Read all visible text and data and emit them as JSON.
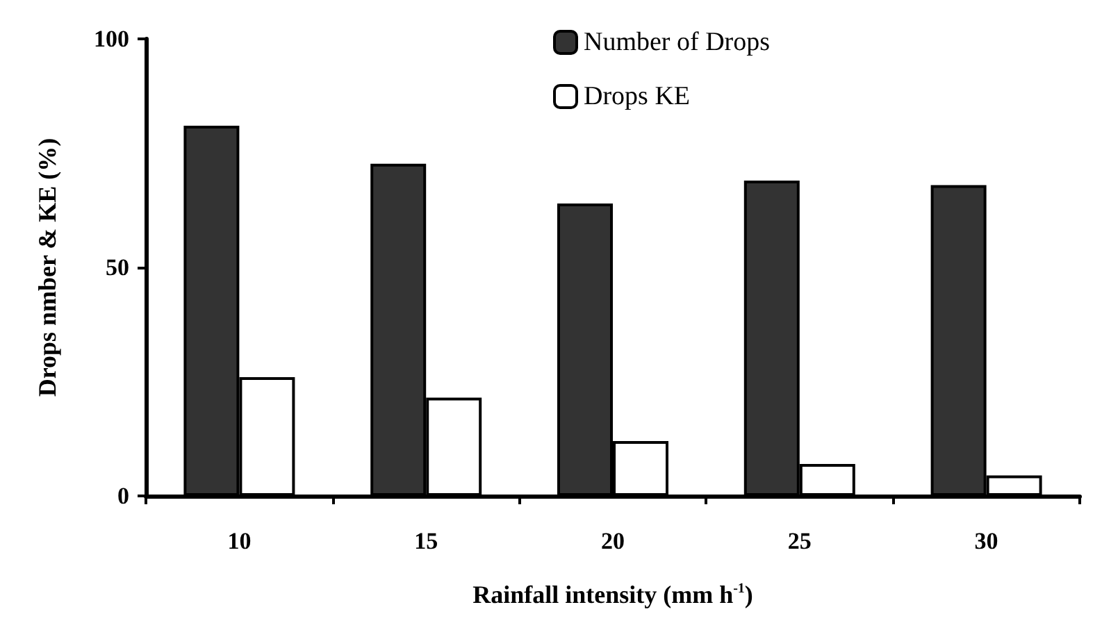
{
  "chart_data": {
    "type": "bar",
    "xlabel": "Rainfall intensity (mm h$^{-1}$)",
    "ylabel": "Drops nmber & KE (%)",
    "categories": [
      "10",
      "15",
      "20",
      "25",
      "30"
    ],
    "series": [
      {
        "name": "Number of Drops",
        "color": "#333333",
        "values": [
          81,
          72.7,
          64,
          69,
          68
        ]
      },
      {
        "name": "Drops KE",
        "color": "#ffffff",
        "values": [
          26,
          21.5,
          12,
          7,
          4.5
        ]
      }
    ],
    "ylim": [
      0,
      100
    ],
    "yticks": [
      0,
      50,
      100
    ],
    "grid": false,
    "legend": "top right"
  }
}
